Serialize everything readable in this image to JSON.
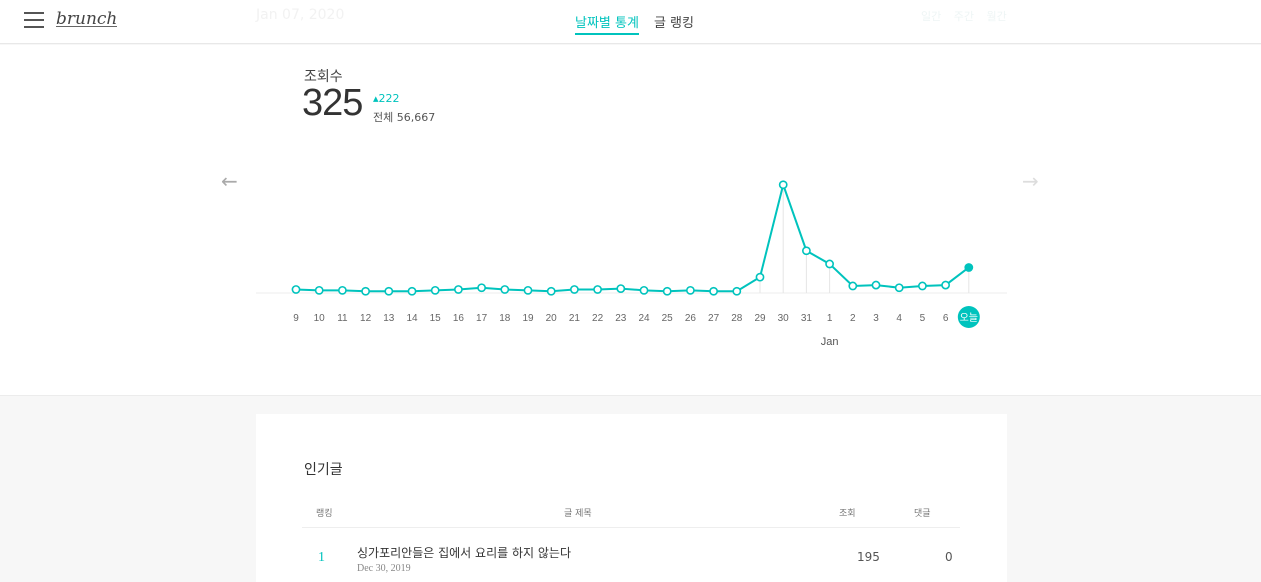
{
  "header": {
    "logo": "brunch",
    "faded_date": "Jan 07, 2020",
    "faded_periods": [
      "일간",
      "주간",
      "월간"
    ],
    "tabs": [
      {
        "label": "날짜별 통계",
        "active": true
      },
      {
        "label": "글 랭킹",
        "active": false
      }
    ]
  },
  "metric": {
    "label": "조회수",
    "value": "325",
    "change": "222",
    "total": "전체 56,667"
  },
  "chart_data": {
    "type": "line",
    "x": [
      "9",
      "10",
      "11",
      "12",
      "13",
      "14",
      "15",
      "16",
      "17",
      "18",
      "19",
      "20",
      "21",
      "22",
      "23",
      "24",
      "25",
      "26",
      "27",
      "28",
      "29",
      "30",
      "31",
      "1",
      "2",
      "3",
      "4",
      "5",
      "6",
      "오늘"
    ],
    "month_label": "Jan",
    "values": [
      4,
      3,
      3,
      2,
      2,
      2,
      3,
      4,
      6,
      4,
      3,
      2,
      4,
      4,
      5,
      3,
      2,
      3,
      2,
      2,
      18,
      123,
      48,
      33,
      8,
      9,
      6,
      8,
      9,
      29
    ],
    "today_index": 29,
    "color": "#00c3bd"
  },
  "popular": {
    "title": "인기글",
    "headers": {
      "rank": "랭킹",
      "post_title": "글 제목",
      "views": "조회",
      "comments": "댓글"
    },
    "rows": [
      {
        "rank": "1",
        "title": "싱가포리안들은 집에서 요리를 하지 않는다",
        "date": "Dec 30, 2019",
        "views": "195",
        "comments": "0"
      }
    ]
  }
}
